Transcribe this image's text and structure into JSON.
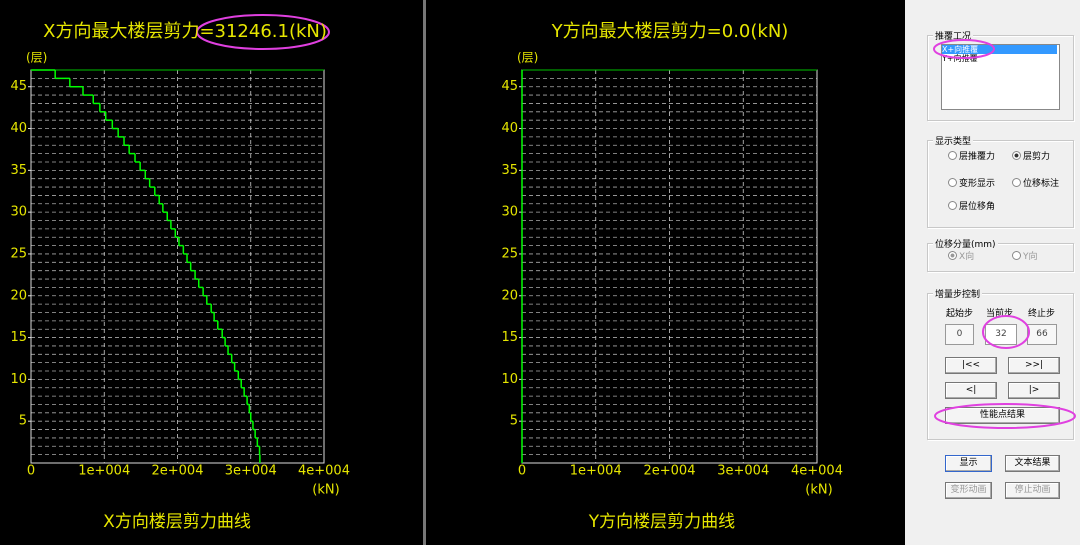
{
  "chart_data": [
    {
      "type": "step",
      "title": "X方向最大楼层剪力=31246.1(kN)",
      "ylabel": "(层)",
      "xlabel": "(kN)",
      "caption": "X方向楼层剪力曲线",
      "color": "#00ff00",
      "grid": true,
      "xlim": [
        0,
        40000
      ],
      "xticks": [
        0,
        {
          "value": 10000,
          "label": "1e+004"
        },
        {
          "value": 20000,
          "label": "2e+004"
        },
        {
          "value": 30000,
          "label": "3e+004"
        },
        {
          "value": 40000,
          "label": "4e+004"
        }
      ],
      "ylim": [
        0,
        47
      ],
      "yticks": [
        5,
        10,
        15,
        20,
        25,
        30,
        35,
        40,
        45
      ],
      "y": [
        1,
        2,
        3,
        4,
        5,
        6,
        7,
        8,
        9,
        10,
        11,
        12,
        13,
        14,
        15,
        16,
        17,
        18,
        19,
        20,
        21,
        22,
        23,
        24,
        25,
        26,
        27,
        28,
        29,
        30,
        31,
        32,
        33,
        34,
        35,
        36,
        37,
        38,
        39,
        40,
        41,
        42,
        43,
        44,
        45,
        46,
        47
      ],
      "values": [
        31246.1,
        31200,
        30900,
        30600,
        30300,
        30000,
        29800,
        29500,
        29100,
        28700,
        28300,
        27800,
        27400,
        26900,
        26500,
        26100,
        25500,
        25000,
        24600,
        24000,
        23500,
        22900,
        22400,
        21800,
        21300,
        20800,
        20200,
        19700,
        19100,
        18600,
        18000,
        17500,
        16900,
        16200,
        15600,
        14900,
        14200,
        13400,
        12700,
        11900,
        11100,
        10200,
        9400,
        8500,
        7100,
        5300,
        3300
      ]
    },
    {
      "type": "step",
      "title": "Y方向最大楼层剪力=0.0(kN)",
      "ylabel": "(层)",
      "xlabel": "(kN)",
      "caption": "Y方向楼层剪力曲线",
      "color": "#00ff00",
      "grid": true,
      "xlim": [
        0,
        40000
      ],
      "xticks": [
        0,
        {
          "value": 10000,
          "label": "1e+004"
        },
        {
          "value": 20000,
          "label": "2e+004"
        },
        {
          "value": 30000,
          "label": "3e+004"
        },
        {
          "value": 40000,
          "label": "4e+004"
        }
      ],
      "ylim": [
        0,
        47
      ],
      "yticks": [
        5,
        10,
        15,
        20,
        25,
        30,
        35,
        40,
        45
      ],
      "y": [
        1,
        2,
        3,
        4,
        5,
        6,
        7,
        8,
        9,
        10,
        11,
        12,
        13,
        14,
        15,
        16,
        17,
        18,
        19,
        20,
        21,
        22,
        23,
        24,
        25,
        26,
        27,
        28,
        29,
        30,
        31,
        32,
        33,
        34,
        35,
        36,
        37,
        38,
        39,
        40,
        41,
        42,
        43,
        44,
        45,
        46,
        47
      ],
      "values": [
        0,
        0,
        0,
        0,
        0,
        0,
        0,
        0,
        0,
        0,
        0,
        0,
        0,
        0,
        0,
        0,
        0,
        0,
        0,
        0,
        0,
        0,
        0,
        0,
        0,
        0,
        0,
        0,
        0,
        0,
        0,
        0,
        0,
        0,
        0,
        0,
        0,
        0,
        0,
        0,
        0,
        0,
        0,
        0,
        0,
        0,
        0
      ]
    }
  ],
  "panel": {
    "load_case": {
      "title": "推覆工况",
      "items": [
        "X+向推覆",
        "Y+向推覆"
      ],
      "selected": 0
    },
    "display_type": {
      "title": "显示类型",
      "options": [
        "层推覆力",
        "层剪力",
        "变形显示",
        "位移标注",
        "层位移角"
      ],
      "checked": 1
    },
    "displacement": {
      "title": "位移分量(mm)",
      "options": [
        "X向",
        "Y向"
      ],
      "checked": 0
    },
    "step_control": {
      "title": "增量步控制",
      "labels": [
        "起始步",
        "当前步",
        "终止步"
      ],
      "values": [
        0,
        32,
        66
      ],
      "buttons": [
        "|<<",
        ">>|",
        "<|",
        "|>",
        "性能点结果"
      ]
    },
    "actions": [
      "显示",
      "文本结果",
      "变形动画",
      "停止动画"
    ]
  }
}
